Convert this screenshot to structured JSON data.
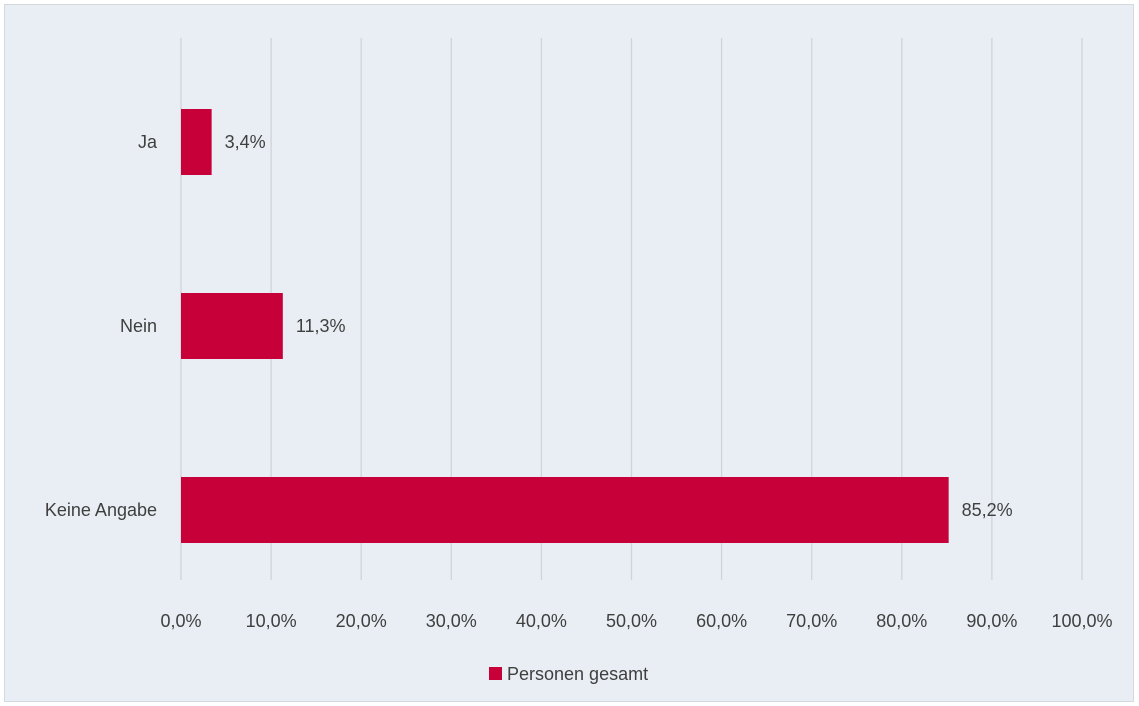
{
  "chart_data": {
    "type": "bar",
    "orientation": "horizontal",
    "categories": [
      "Ja",
      "Nein",
      "Keine Angabe"
    ],
    "series": [
      {
        "name": "Personen gesamt",
        "values": [
          3.4,
          11.3,
          85.2
        ],
        "value_labels": [
          "3,4%",
          "11,3%",
          "85,2%"
        ],
        "color": "#c8003a"
      }
    ],
    "xlim": [
      0,
      100
    ],
    "xticks": [
      0,
      10,
      20,
      30,
      40,
      50,
      60,
      70,
      80,
      90,
      100
    ],
    "xtick_labels": [
      "0,0%",
      "10,0%",
      "20,0%",
      "30,0%",
      "40,0%",
      "50,0%",
      "60,0%",
      "70,0%",
      "80,0%",
      "90,0%",
      "100,0%"
    ],
    "grid": "vertical",
    "legend_position": "bottom",
    "background_color": "#e8eef3"
  }
}
